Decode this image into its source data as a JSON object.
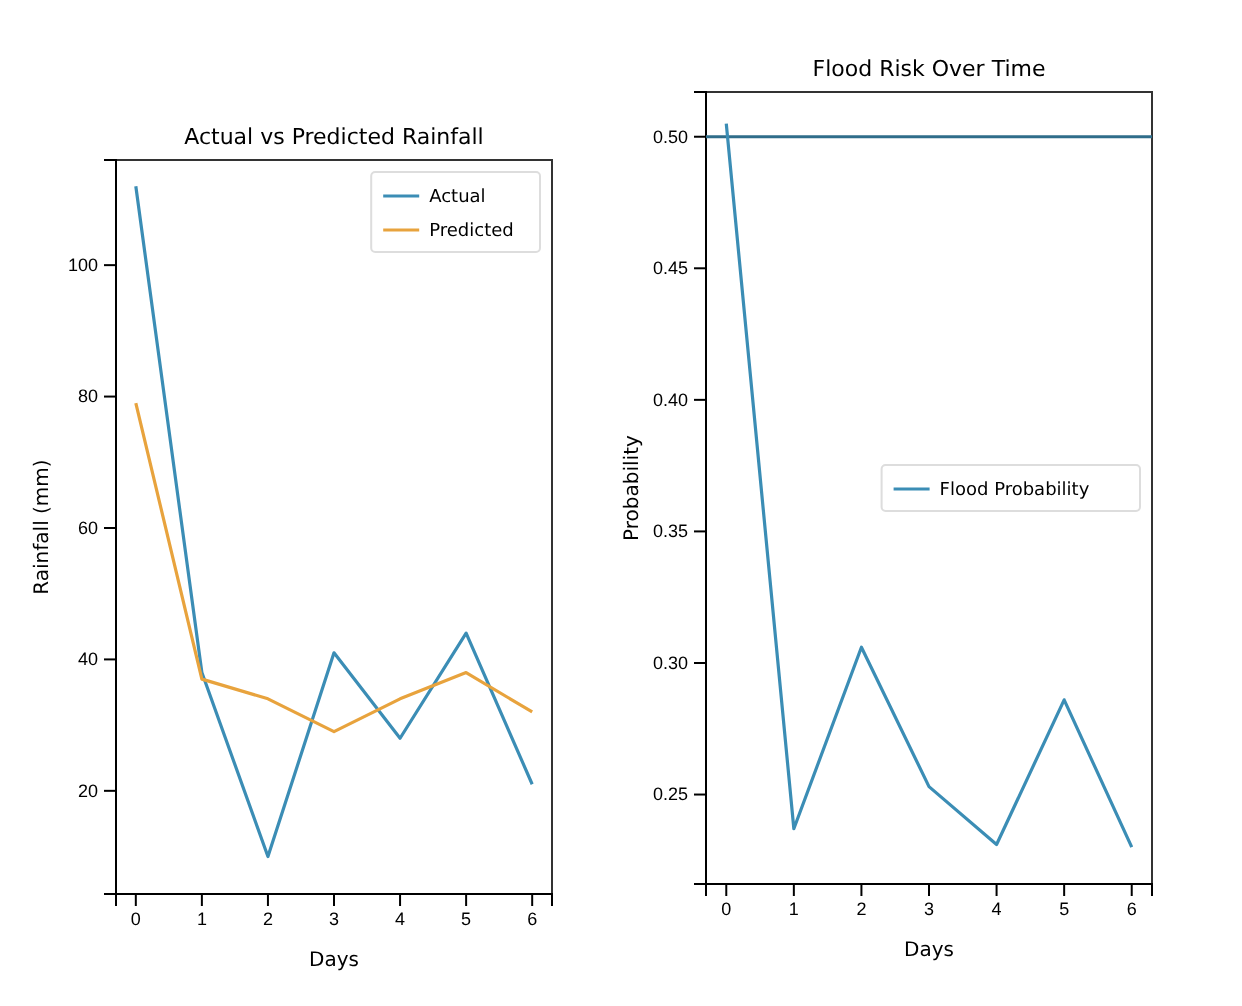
{
  "chart_data": [
    {
      "type": "line",
      "title": "Actual vs Predicted Rainfall",
      "xlabel": "Days",
      "ylabel": "Rainfall (mm)",
      "x": [
        0,
        1,
        2,
        3,
        4,
        5,
        6
      ],
      "xlim": [
        -0.3,
        6.3
      ],
      "xticks": [
        0,
        1,
        2,
        3,
        4,
        5,
        6
      ],
      "ylim": [
        4.3,
        116
      ],
      "yticks": [
        20,
        40,
        60,
        80,
        100
      ],
      "series": [
        {
          "name": "Actual",
          "color": "#3b8db5",
          "values": [
            112,
            38,
            10,
            41,
            28,
            44,
            21
          ]
        },
        {
          "name": "Predicted",
          "color": "#e8a33d",
          "values": [
            79,
            37,
            34,
            29,
            34,
            38,
            32
          ]
        }
      ],
      "legend": "top right",
      "grid": false
    },
    {
      "type": "line",
      "title": "Flood Risk Over Time",
      "xlabel": "Days",
      "ylabel": "Probability",
      "x": [
        0,
        1,
        2,
        3,
        4,
        5,
        6
      ],
      "xlim": [
        -0.3,
        6.3
      ],
      "xticks": [
        0,
        1,
        2,
        3,
        4,
        5,
        6
      ],
      "ylim": [
        0.216,
        0.517
      ],
      "yticks": [
        {
          "value": 0.25,
          "label": "0.25"
        },
        {
          "value": 0.3,
          "label": "0.30"
        },
        {
          "value": 0.35,
          "label": "0.35"
        },
        {
          "value": 0.4,
          "label": "0.40"
        },
        {
          "value": 0.45,
          "label": "0.45"
        },
        {
          "value": 0.5,
          "label": "0.50"
        }
      ],
      "series": [
        {
          "name": "Flood Probability",
          "color": "#3b8db5",
          "values": [
            0.505,
            0.237,
            0.306,
            0.253,
            0.231,
            0.286,
            0.23
          ]
        }
      ],
      "ref_lines": [
        {
          "axis": "y",
          "value": 0.5,
          "color": "#2f6d8a"
        }
      ],
      "legend": "right",
      "grid": false
    }
  ]
}
